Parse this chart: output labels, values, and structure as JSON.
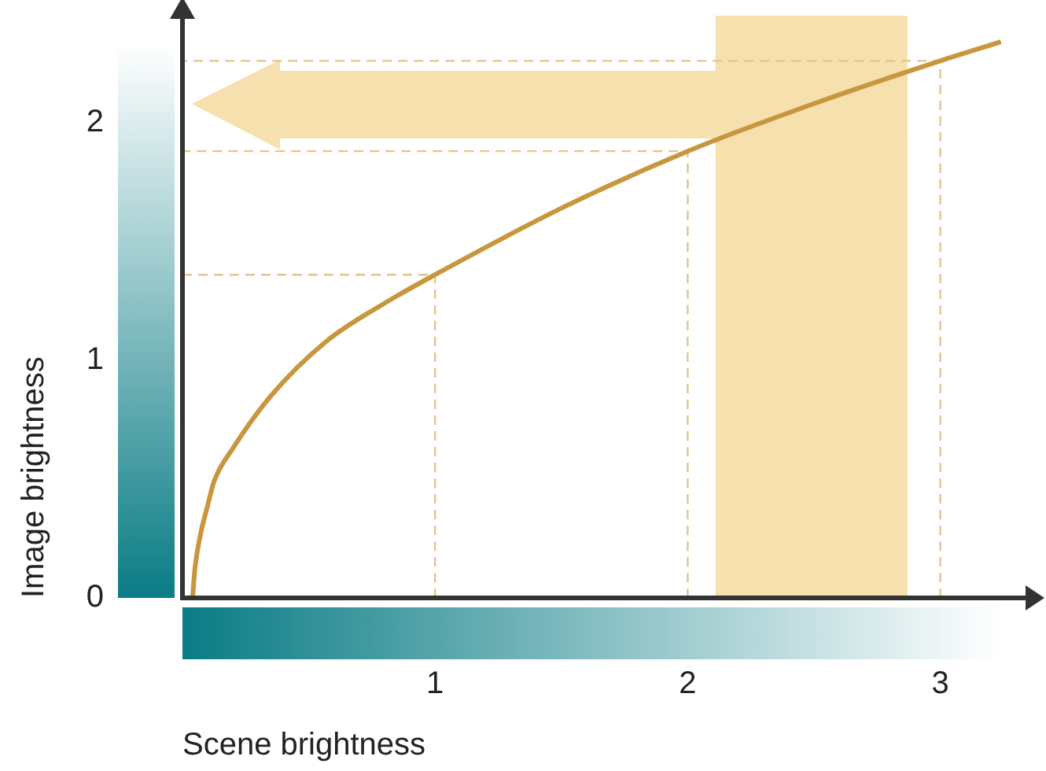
{
  "chart_data": {
    "type": "line",
    "xlabel": "Scene brightness",
    "ylabel": "Image brightness",
    "xlim": [
      0,
      3.35
    ],
    "ylim": [
      0,
      2.45
    ],
    "xticks": [
      1,
      2,
      3
    ],
    "yticks": [
      0,
      1,
      2
    ],
    "grid": false,
    "legend": false,
    "marker": "none",
    "series": [
      {
        "color": "#c8963c",
        "line_style": "solid",
        "x": [
          0.04,
          0.05,
          0.07,
          0.1,
          0.125,
          0.2,
          0.35,
          0.57,
          0.8,
          1,
          1.5,
          2,
          2.5,
          3,
          3.24
        ],
        "values": [
          0,
          0.13,
          0.26,
          0.39,
          0.49,
          0.63,
          0.85,
          1.08,
          1.24,
          1.36,
          1.64,
          1.88,
          2.08,
          2.26,
          2.34
        ]
      },
      {
        "color": "#e2c58a",
        "line_style": "dashed",
        "x": [
          1,
          1,
          0
        ],
        "values": [
          0,
          1.36,
          1.36
        ]
      },
      {
        "color": "#e2c58a",
        "line_style": "dashed",
        "x": [
          2,
          2,
          0
        ],
        "values": [
          0,
          1.88,
          1.88
        ]
      },
      {
        "color": "#e2c58a",
        "line_style": "dashed",
        "x": [
          3,
          3,
          0
        ],
        "values": [
          0,
          2.26,
          2.26
        ]
      }
    ],
    "bands": [
      {
        "axis": "x",
        "from": 2.11,
        "to": 2.87,
        "color": "#f6e0ad"
      }
    ]
  }
}
